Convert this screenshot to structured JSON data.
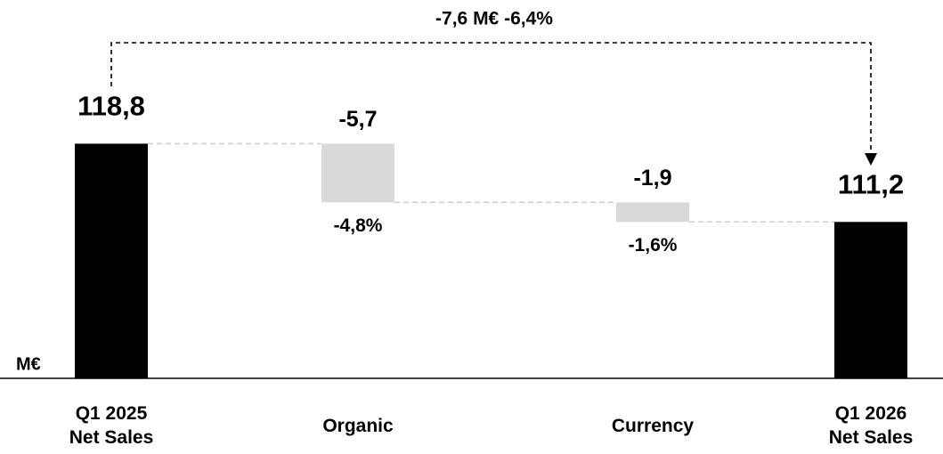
{
  "chart_data": {
    "type": "waterfall",
    "annotation": "-7,6 M€ -6,4%",
    "unit_label": "M€",
    "categories": [
      "Q1 2025\nNet Sales",
      "Organic",
      "Currency",
      "Q1 2026\nNet Sales"
    ],
    "measure": [
      "absolute",
      "relative",
      "relative",
      "absolute"
    ],
    "values": [
      118.8,
      -5.7,
      -1.9,
      111.2
    ],
    "value_labels": [
      "118,8",
      "-5,7",
      "-1,9",
      "111,2"
    ],
    "percent_labels": [
      null,
      "-4,8%",
      "-1,6%",
      null
    ],
    "colors": {
      "absolute": "#000000",
      "relative": "#d9d9d9"
    },
    "ylim": [
      96,
      121
    ]
  }
}
